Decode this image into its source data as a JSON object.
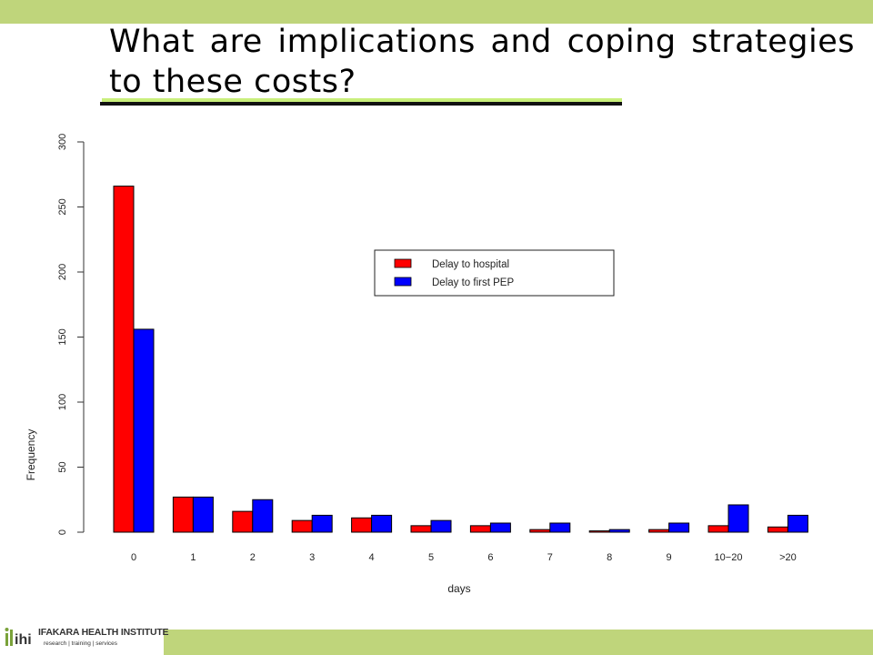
{
  "slide": {
    "title": "What are implications and coping strategies to these costs?",
    "colors": {
      "band": "#bfd57b",
      "underline_light": "#c9ef7c",
      "underline_dark": "#111111"
    }
  },
  "logo": {
    "name": "IFAKARA HEALTH INSTITUTE",
    "tagline": "research | training | services",
    "icon": "ihi-logo-mark"
  },
  "chart_data": {
    "type": "bar",
    "title": "",
    "xlabel": "days",
    "ylabel": "Frequency",
    "ylim": [
      0,
      300
    ],
    "yticks": [
      "0",
      "50",
      "100",
      "150",
      "200",
      "250",
      "300"
    ],
    "categories": [
      "0",
      "1",
      "2",
      "3",
      "4",
      "5",
      "6",
      "7",
      "8",
      "9",
      "10−20",
      ">20"
    ],
    "series": [
      {
        "name": "Delay to hospital",
        "color": "#ff0000",
        "values": [
          266,
          27,
          16,
          9,
          11,
          5,
          5,
          2,
          1,
          2,
          5,
          4
        ]
      },
      {
        "name": "Delay to first PEP",
        "color": "#0000ff",
        "values": [
          156,
          27,
          25,
          13,
          13,
          9,
          7,
          7,
          2,
          7,
          21,
          13
        ]
      }
    ],
    "legend": "top-right",
    "grid": false
  }
}
